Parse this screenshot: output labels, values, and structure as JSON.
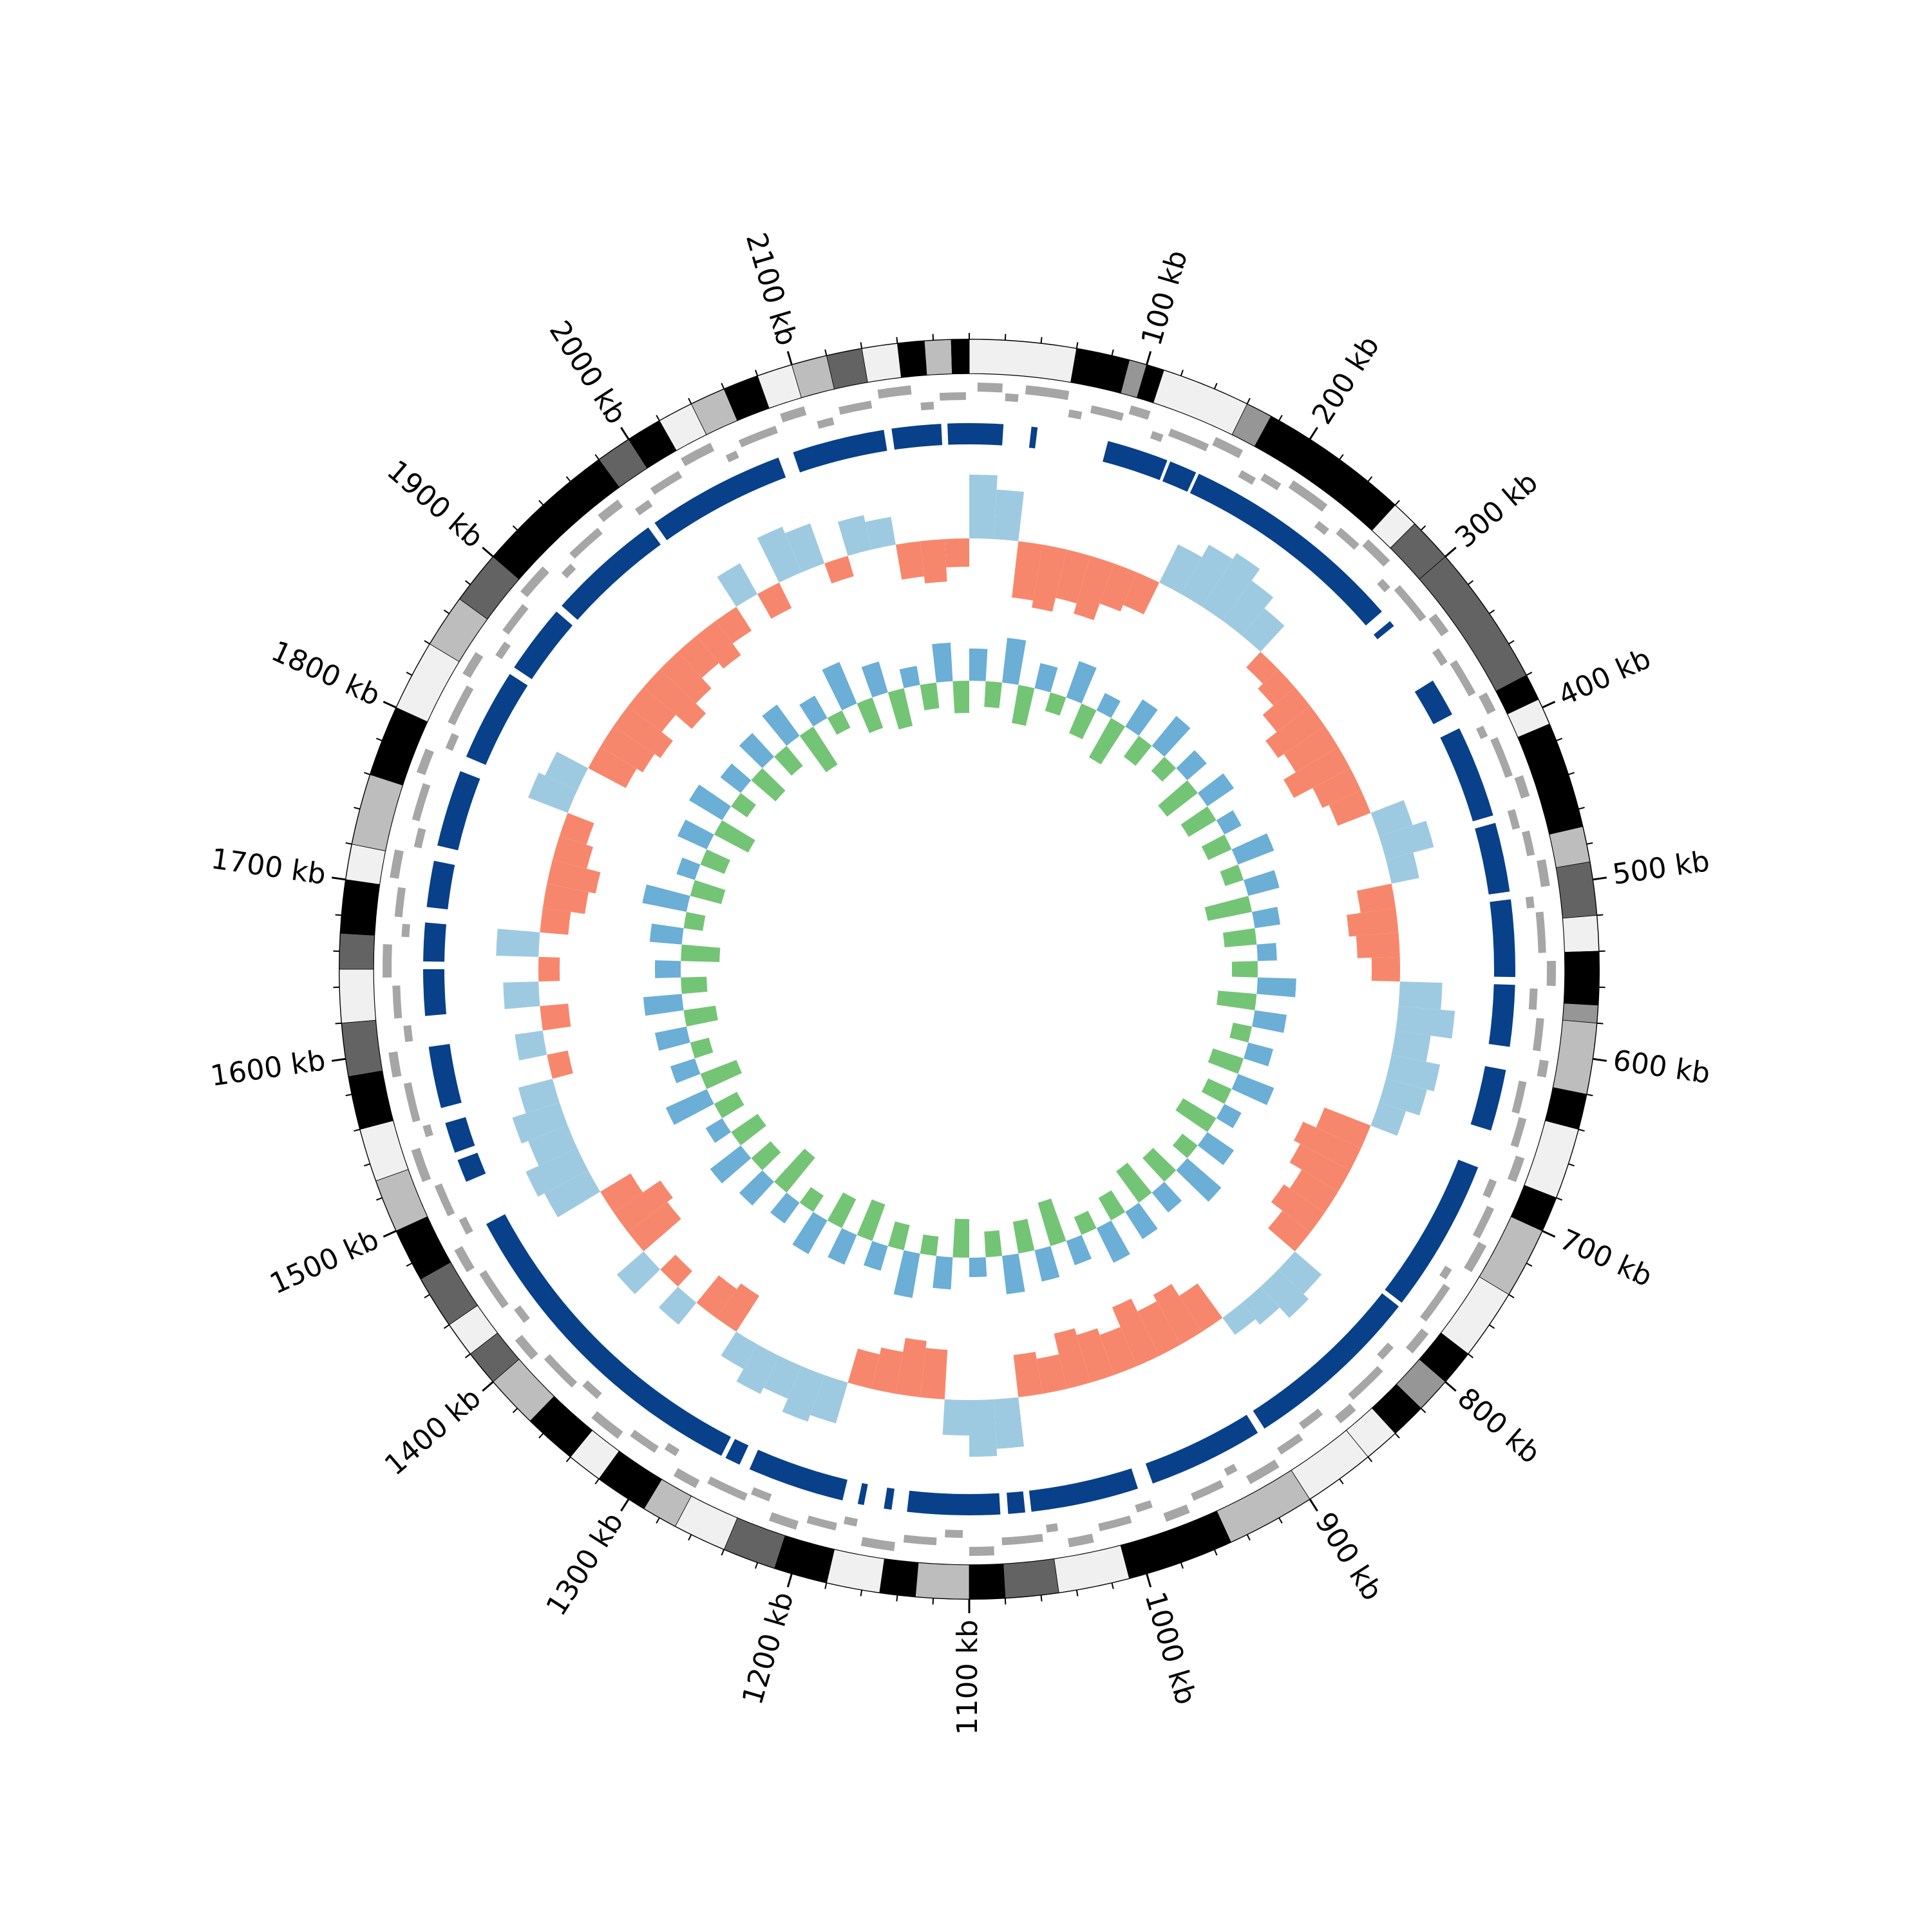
{
  "chart_data": {
    "type": "circos",
    "genome_length": 2200,
    "ticks": [
      {
        "value": 100,
        "label": "100 kb"
      },
      {
        "value": 200,
        "label": "200 kb"
      },
      {
        "value": 300,
        "label": "300 kb"
      },
      {
        "value": 400,
        "label": "400 kb"
      },
      {
        "value": 500,
        "label": "500 kb"
      },
      {
        "value": 600,
        "label": "600 kb"
      },
      {
        "value": 700,
        "label": "700 kb"
      },
      {
        "value": 800,
        "label": "800 kb"
      },
      {
        "value": 900,
        "label": "900 kb"
      },
      {
        "value": 1000,
        "label": "1000 kb"
      },
      {
        "value": 1100,
        "label": "1100 kb"
      },
      {
        "value": 1200,
        "label": "1200 kb"
      },
      {
        "value": 1300,
        "label": "1300 kb"
      },
      {
        "value": 1400,
        "label": "1400 kb"
      },
      {
        "value": 1500,
        "label": "1500 kb"
      },
      {
        "value": 1600,
        "label": "1600 kb"
      },
      {
        "value": 1700,
        "label": "1700 kb"
      },
      {
        "value": 1800,
        "label": "1800 kb"
      },
      {
        "value": 1900,
        "label": "1900 kb"
      },
      {
        "value": 2000,
        "label": "2000 kb"
      },
      {
        "value": 2100,
        "label": "2100 kb"
      }
    ],
    "minor_tick_step": 20,
    "bands": [
      [
        0,
        60,
        "#f0f0f0"
      ],
      [
        60,
        90,
        "#000000"
      ],
      [
        90,
        100,
        "#969696"
      ],
      [
        100,
        110,
        "#000000"
      ],
      [
        110,
        160,
        "#f0f0f0"
      ],
      [
        160,
        175,
        "#969696"
      ],
      [
        175,
        260,
        "#000000"
      ],
      [
        260,
        275,
        "#f0f0f0"
      ],
      [
        275,
        300,
        "#636363"
      ],
      [
        300,
        380,
        "#636363"
      ],
      [
        380,
        395,
        "#000000"
      ],
      [
        395,
        410,
        "#f0f0f0"
      ],
      [
        410,
        430,
        "#000000"
      ],
      [
        430,
        470,
        "#000000"
      ],
      [
        470,
        490,
        "#bdbdbd"
      ],
      [
        490,
        520,
        "#636363"
      ],
      [
        520,
        540,
        "#f0f0f0"
      ],
      [
        540,
        570,
        "#000000"
      ],
      [
        570,
        580,
        "#969696"
      ],
      [
        580,
        620,
        "#bdbdbd"
      ],
      [
        620,
        640,
        "#000000"
      ],
      [
        640,
        680,
        "#f0f0f0"
      ],
      [
        680,
        700,
        "#000000"
      ],
      [
        700,
        740,
        "#bdbdbd"
      ],
      [
        740,
        780,
        "#f0f0f0"
      ],
      [
        780,
        800,
        "#000000"
      ],
      [
        800,
        820,
        "#969696"
      ],
      [
        820,
        840,
        "#000000"
      ],
      [
        840,
        860,
        "#f0f0f0"
      ],
      [
        860,
        900,
        "#f0f0f0"
      ],
      [
        900,
        950,
        "#bdbdbd"
      ],
      [
        950,
        970,
        "#000000"
      ],
      [
        970,
        1010,
        "#000000"
      ],
      [
        1010,
        1050,
        "#f0f0f0"
      ],
      [
        1050,
        1080,
        "#636363"
      ],
      [
        1080,
        1100,
        "#000000"
      ],
      [
        1100,
        1130,
        "#bdbdbd"
      ],
      [
        1130,
        1150,
        "#000000"
      ],
      [
        1150,
        1180,
        "#f0f0f0"
      ],
      [
        1180,
        1210,
        "#000000"
      ],
      [
        1210,
        1240,
        "#636363"
      ],
      [
        1240,
        1270,
        "#f0f0f0"
      ],
      [
        1270,
        1290,
        "#bdbdbd"
      ],
      [
        1290,
        1320,
        "#000000"
      ],
      [
        1320,
        1340,
        "#f0f0f0"
      ],
      [
        1340,
        1370,
        "#000000"
      ],
      [
        1370,
        1400,
        "#bdbdbd"
      ],
      [
        1400,
        1420,
        "#636363"
      ],
      [
        1420,
        1440,
        "#f0f0f0"
      ],
      [
        1440,
        1470,
        "#636363"
      ],
      [
        1470,
        1500,
        "#000000"
      ],
      [
        1500,
        1530,
        "#bdbdbd"
      ],
      [
        1530,
        1560,
        "#f0f0f0"
      ],
      [
        1560,
        1590,
        "#000000"
      ],
      [
        1590,
        1620,
        "#636363"
      ],
      [
        1620,
        1650,
        "#f0f0f0"
      ],
      [
        1650,
        1670,
        "#636363"
      ],
      [
        1670,
        1700,
        "#000000"
      ],
      [
        1700,
        1720,
        "#f0f0f0"
      ],
      [
        1720,
        1760,
        "#bdbdbd"
      ],
      [
        1760,
        1800,
        "#000000"
      ],
      [
        1800,
        1840,
        "#f0f0f0"
      ],
      [
        1840,
        1870,
        "#bdbdbd"
      ],
      [
        1870,
        1900,
        "#636363"
      ],
      [
        1900,
        1980,
        "#000000"
      ],
      [
        1980,
        2000,
        "#636363"
      ],
      [
        2000,
        2020,
        "#000000"
      ],
      [
        2020,
        2040,
        "#f0f0f0"
      ],
      [
        2040,
        2060,
        "#bdbdbd"
      ],
      [
        2060,
        2080,
        "#000000"
      ],
      [
        2080,
        2100,
        "#f0f0f0"
      ],
      [
        2100,
        2120,
        "#bdbdbd"
      ],
      [
        2120,
        2140,
        "#636363"
      ],
      [
        2140,
        2160,
        "#f0f0f0"
      ],
      [
        2160,
        2175,
        "#000000"
      ],
      [
        2175,
        2190,
        "#bdbdbd"
      ],
      [
        2190,
        2200,
        "#000000"
      ]
    ],
    "genes": [
      [
        5,
        20,
        0
      ],
      [
        22,
        30,
        1
      ],
      [
        34,
        60,
        0
      ],
      [
        62,
        70,
        2
      ],
      [
        75,
        95,
        1
      ],
      [
        98,
        110,
        0
      ],
      [
        115,
        122,
        2
      ],
      [
        125,
        150,
        1
      ],
      [
        152,
        170,
        0
      ],
      [
        175,
        185,
        2
      ],
      [
        188,
        200,
        1
      ],
      [
        205,
        230,
        0
      ],
      [
        232,
        240,
        2
      ],
      [
        245,
        260,
        1
      ],
      [
        262,
        280,
        0
      ],
      [
        285,
        292,
        2
      ],
      [
        295,
        320,
        1
      ],
      [
        322,
        335,
        0
      ],
      [
        340,
        350,
        2
      ],
      [
        352,
        375,
        1
      ],
      [
        378,
        390,
        0
      ],
      [
        395,
        402,
        2
      ],
      [
        405,
        430,
        1
      ],
      [
        432,
        445,
        0
      ],
      [
        450,
        462,
        2
      ],
      [
        465,
        480,
        1
      ],
      [
        484,
        500,
        0
      ],
      [
        505,
        512,
        2
      ],
      [
        515,
        540,
        1
      ],
      [
        545,
        560,
        0
      ],
      [
        562,
        575,
        2
      ],
      [
        580,
        600,
        1
      ],
      [
        605,
        615,
        0
      ],
      [
        620,
        640,
        2
      ],
      [
        642,
        660,
        1
      ],
      [
        665,
        680,
        0
      ],
      [
        684,
        695,
        2
      ],
      [
        700,
        720,
        1
      ],
      [
        722,
        740,
        0
      ],
      [
        745,
        752,
        2
      ],
      [
        755,
        780,
        1
      ],
      [
        785,
        800,
        0
      ],
      [
        805,
        815,
        2
      ],
      [
        820,
        845,
        1
      ],
      [
        848,
        860,
        0
      ],
      [
        865,
        880,
        2
      ],
      [
        884,
        900,
        1
      ],
      [
        905,
        925,
        0
      ],
      [
        928,
        935,
        2
      ],
      [
        940,
        960,
        1
      ],
      [
        965,
        980,
        0
      ],
      [
        985,
        995,
        2
      ],
      [
        1000,
        1020,
        1
      ],
      [
        1025,
        1040,
        0
      ],
      [
        1045,
        1052,
        2
      ],
      [
        1055,
        1080,
        1
      ],
      [
        1085,
        1100,
        0
      ],
      [
        1104,
        1115,
        2
      ],
      [
        1120,
        1140,
        1
      ],
      [
        1145,
        1165,
        0
      ],
      [
        1170,
        1178,
        2
      ],
      [
        1182,
        1200,
        1
      ],
      [
        1205,
        1222,
        0
      ],
      [
        1226,
        1238,
        2
      ],
      [
        1240,
        1265,
        1
      ],
      [
        1270,
        1285,
        0
      ],
      [
        1290,
        1298,
        2
      ],
      [
        1302,
        1320,
        1
      ],
      [
        1325,
        1345,
        0
      ],
      [
        1350,
        1362,
        2
      ],
      [
        1366,
        1390,
        1
      ],
      [
        1395,
        1410,
        0
      ],
      [
        1415,
        1425,
        2
      ],
      [
        1430,
        1455,
        1
      ],
      [
        1460,
        1475,
        0
      ],
      [
        1480,
        1490,
        2
      ],
      [
        1495,
        1515,
        1
      ],
      [
        1520,
        1540,
        0
      ],
      [
        1545,
        1552,
        2
      ],
      [
        1556,
        1580,
        1
      ],
      [
        1585,
        1600,
        0
      ],
      [
        1605,
        1615,
        2
      ],
      [
        1620,
        1640,
        1
      ],
      [
        1645,
        1665,
        0
      ],
      [
        1670,
        1678,
        2
      ],
      [
        1682,
        1700,
        1
      ],
      [
        1705,
        1722,
        0
      ],
      [
        1726,
        1738,
        2
      ],
      [
        1742,
        1765,
        1
      ],
      [
        1770,
        1785,
        0
      ],
      [
        1790,
        1800,
        2
      ],
      [
        1805,
        1830,
        1
      ],
      [
        1835,
        1850,
        0
      ],
      [
        1855,
        1865,
        2
      ],
      [
        1870,
        1890,
        1
      ],
      [
        1895,
        1915,
        0
      ],
      [
        1920,
        1928,
        2
      ],
      [
        1932,
        1955,
        1
      ],
      [
        1960,
        1975,
        0
      ],
      [
        1980,
        1990,
        2
      ],
      [
        1995,
        2015,
        1
      ],
      [
        2020,
        2040,
        0
      ],
      [
        2045,
        2052,
        2
      ],
      [
        2056,
        2080,
        1
      ],
      [
        2085,
        2100,
        0
      ],
      [
        2105,
        2115,
        2
      ],
      [
        2120,
        2140,
        1
      ],
      [
        2145,
        2165,
        0
      ],
      [
        2170,
        2178,
        2
      ],
      [
        2182,
        2198,
        1
      ]
    ],
    "gene_color": "#a6a6a6",
    "blocks": [
      [
        0,
        22
      ],
      [
        40,
        44
      ],
      [
        90,
        130
      ],
      [
        132,
        150
      ],
      [
        152,
        300
      ],
      [
        308,
        312
      ],
      [
        355,
        380
      ],
      [
        390,
        450
      ],
      [
        455,
        500
      ],
      [
        505,
        555
      ],
      [
        560,
        600
      ],
      [
        615,
        655
      ],
      [
        680,
        780
      ],
      [
        783,
        900
      ],
      [
        905,
        980
      ],
      [
        990,
        1060
      ],
      [
        1064,
        1075
      ],
      [
        1080,
        1140
      ],
      [
        1150,
        1155
      ],
      [
        1168,
        1172
      ],
      [
        1182,
        1245
      ],
      [
        1252,
        1262
      ],
      [
        1265,
        1480
      ],
      [
        1510,
        1525
      ],
      [
        1530,
        1550
      ],
      [
        1560,
        1600
      ],
      [
        1620,
        1650
      ],
      [
        1655,
        1680
      ],
      [
        1690,
        1720
      ],
      [
        1730,
        1780
      ],
      [
        1790,
        1850
      ],
      [
        1855,
        1900
      ],
      [
        1905,
        1980
      ],
      [
        1985,
        2075
      ],
      [
        2085,
        2145
      ],
      [
        2150,
        2182
      ],
      [
        2186,
        2200
      ]
    ],
    "block_color": "#08408a",
    "bin_size": 20,
    "skew": {
      "colors": [
        "#9ecae1",
        "#f7876c"
      ],
      "values": [
        0.9,
        0.7,
        -0.8,
        -0.9,
        -0.7,
        -0.85,
        -0.6,
        -0.5,
        0.6,
        0.8,
        0.9,
        0.7,
        0.5,
        -0.3,
        -0.4,
        -0.6,
        -0.8,
        -0.7,
        -0.9,
        -0.6,
        -0.5,
        0.5,
        0.7,
        0.4,
        -0.5,
        -0.7,
        -0.6,
        -0.4,
        0.6,
        0.8,
        0.5,
        0.7,
        0.6,
        0.4,
        -0.7,
        -0.9,
        -0.8,
        -0.6,
        -0.7,
        -0.5,
        0.5,
        0.6,
        0.4,
        0.3,
        -0.6,
        -0.8,
        -0.7,
        -0.9,
        -0.6,
        -0.7,
        -0.8,
        -0.5,
        -0.6,
        0.7,
        0.8,
        0.5,
        -0.7,
        -0.8,
        -0.6,
        -0.5,
        0.6,
        0.7,
        0.5,
        0.6,
        0.4,
        -0.6,
        -0.5,
        0.4,
        -0.3,
        0.5,
        -0.7,
        -0.8,
        -0.5,
        0.7,
        0.8,
        0.6,
        0.7,
        0.5,
        -0.3,
        0.4,
        -0.4,
        0.5,
        -0.3,
        0.6,
        -0.4,
        -0.6,
        -0.7,
        -0.5,
        -0.4,
        0.6,
        0.5,
        -0.6,
        -0.7,
        -0.8,
        -0.6,
        -0.9,
        -0.7,
        -0.5,
        -0.6,
        -0.4,
        0.5,
        -0.4,
        0.7,
        0.6,
        -0.3,
        0.5,
        0.4,
        -0.5,
        -0.6,
        -0.4
      ]
    },
    "content": {
      "colors": [
        "#6baed6",
        "#74c476"
      ],
      "values": [
        0.5,
        -0.4,
        0.7,
        -0.6,
        0.4,
        -0.3,
        0.6,
        -0.5,
        0.3,
        -0.7,
        0.5,
        -0.4,
        0.6,
        -0.3,
        0.4,
        -0.6,
        0.5,
        -0.5,
        0.3,
        -0.4,
        0.6,
        -0.3,
        0.5,
        -0.7,
        0.4,
        -0.5,
        0.3,
        -0.4,
        0.6,
        -0.6,
        0.5,
        -0.3,
        0.4,
        -0.5,
        0.6,
        -0.4,
        0.3,
        -0.6,
        0.5,
        -0.3,
        0.7,
        -0.5,
        0.4,
        -0.6,
        0.5,
        -0.4,
        0.6,
        -0.3,
        0.4,
        -0.7,
        0.5,
        -0.5,
        0.6,
        -0.4,
        0.3,
        -0.6,
        0.5,
        -0.3,
        0.7,
        -0.4,
        0.4,
        -0.6,
        0.5,
        -0.5,
        0.6,
        -0.3,
        0.4,
        -0.7,
        0.5,
        -0.4,
        0.6,
        -0.5,
        0.3,
        -0.4,
        0.7,
        -0.6,
        0.4,
        -0.3,
        0.5,
        -0.5,
        0.6,
        -0.4,
        0.4,
        -0.6,
        0.5,
        -0.3,
        0.7,
        -0.5,
        0.3,
        -0.4,
        0.5,
        -0.6,
        0.6,
        -0.3,
        0.4,
        -0.5,
        0.5,
        -0.4,
        0.6,
        -0.7,
        0.4,
        -0.3,
        0.7,
        -0.5,
        0.5,
        -0.6,
        0.3,
        -0.4,
        0.6,
        -0.5
      ]
    }
  }
}
